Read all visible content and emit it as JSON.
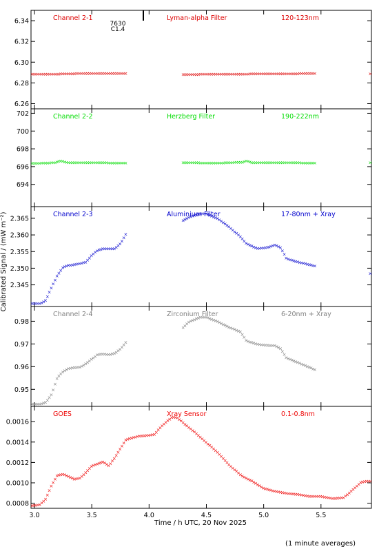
{
  "figure": {
    "xlabel": "Time / h UTC, 20 Nov 2025",
    "ylabel": "Calibrated Signal / (mW m⁻²)",
    "footer": "(1 minute averages)",
    "flare_number": "7630",
    "flare_class": "C1.4"
  },
  "chart_data": [
    {
      "type": "scatter",
      "channel_label": "Channel 2-1",
      "filter_label": "Lyman-alpha Filter",
      "band_label": "120-123nm",
      "color": "#dd0000",
      "xlim": [
        2.97,
        5.94
      ],
      "ylim": [
        6.255,
        6.35
      ],
      "y_ticks": [
        "6.26",
        "6.28",
        "6.30",
        "6.32",
        "6.34"
      ],
      "series": [
        {
          "points": [
            [
              2.98,
              6.289
            ],
            [
              3.2,
              6.289
            ],
            [
              3.4,
              6.2895
            ],
            [
              3.6,
              6.2895
            ],
            [
              3.8,
              6.2895
            ],
            [
              4.3,
              6.2885
            ],
            [
              4.5,
              6.2888
            ],
            [
              4.8,
              6.289
            ],
            [
              5.1,
              6.2892
            ],
            [
              5.45,
              6.2895
            ],
            [
              5.94,
              6.2893
            ]
          ],
          "gaps": [
            [
              3.8,
              4.3
            ],
            [
              5.45,
              5.93
            ]
          ]
        }
      ]
    },
    {
      "type": "scatter",
      "channel_label": "Channel 2-2",
      "filter_label": "Herzberg Filter",
      "band_label": "190-222nm",
      "color": "#00dd00",
      "xlim": [
        2.97,
        5.94
      ],
      "ylim": [
        691.5,
        702.5
      ],
      "y_ticks": [
        "694",
        "696",
        "698",
        "700",
        "702"
      ],
      "series": [
        {
          "points": [
            [
              2.98,
              696.4
            ],
            [
              3.18,
              696.5
            ],
            [
              3.22,
              696.7
            ],
            [
              3.3,
              696.5
            ],
            [
              3.5,
              696.5
            ],
            [
              3.8,
              696.45
            ],
            [
              4.3,
              696.5
            ],
            [
              4.6,
              696.45
            ],
            [
              4.82,
              696.55
            ],
            [
              4.85,
              696.7
            ],
            [
              4.9,
              696.5
            ],
            [
              5.2,
              696.5
            ],
            [
              5.45,
              696.45
            ],
            [
              5.94,
              696.5
            ]
          ],
          "gaps": [
            [
              3.8,
              4.3
            ],
            [
              5.45,
              5.93
            ]
          ]
        }
      ]
    },
    {
      "type": "scatter",
      "channel_label": "Channel 2-3",
      "filter_label": "Aluminium Filter",
      "band_label": "17-80nm + Xray",
      "color": "#0000cc",
      "xlim": [
        2.97,
        5.94
      ],
      "ylim": [
        2.3385,
        2.3685
      ],
      "y_ticks": [
        "2.345",
        "2.350",
        "2.355",
        "2.360",
        "2.365"
      ],
      "series": [
        {
          "points": [
            [
              2.98,
              2.3395
            ],
            [
              3.05,
              2.3395
            ],
            [
              3.1,
              2.3405
            ],
            [
              3.15,
              2.3445
            ],
            [
              3.2,
              2.348
            ],
            [
              3.25,
              2.3505
            ],
            [
              3.3,
              2.351
            ],
            [
              3.4,
              2.3515
            ],
            [
              3.45,
              2.352
            ],
            [
              3.5,
              2.354
            ],
            [
              3.55,
              2.3555
            ],
            [
              3.6,
              2.356
            ],
            [
              3.7,
              2.356
            ],
            [
              3.75,
              2.3575
            ],
            [
              3.8,
              2.3605
            ],
            [
              4.3,
              2.3645
            ],
            [
              4.35,
              2.3655
            ],
            [
              4.45,
              2.3665
            ],
            [
              4.5,
              2.3665
            ],
            [
              4.6,
              2.365
            ],
            [
              4.7,
              2.3625
            ],
            [
              4.8,
              2.3595
            ],
            [
              4.85,
              2.3575
            ],
            [
              4.95,
              2.356
            ],
            [
              5.05,
              2.3565
            ],
            [
              5.1,
              2.3572
            ],
            [
              5.15,
              2.3562
            ],
            [
              5.2,
              2.353
            ],
            [
              5.3,
              2.352
            ],
            [
              5.45,
              2.3508
            ],
            [
              5.94,
              2.3485
            ]
          ],
          "gaps": [
            [
              3.8,
              4.3
            ],
            [
              5.45,
              5.93
            ]
          ]
        }
      ]
    },
    {
      "type": "scatter",
      "channel_label": "Channel 2-4",
      "filter_label": "Zirconium Filter",
      "band_label": "6-20nm + Xray",
      "color": "#808080",
      "xlim": [
        2.97,
        5.94
      ],
      "ylim": [
        0.9425,
        0.9865
      ],
      "y_ticks": [
        "0.95",
        "0.96",
        "0.97",
        "0.98"
      ],
      "series": [
        {
          "points": [
            [
              2.98,
              0.9437
            ],
            [
              3.05,
              0.9437
            ],
            [
              3.1,
              0.9445
            ],
            [
              3.15,
              0.948
            ],
            [
              3.2,
              0.9555
            ],
            [
              3.25,
              0.958
            ],
            [
              3.3,
              0.9595
            ],
            [
              3.4,
              0.96
            ],
            [
              3.45,
              0.9615
            ],
            [
              3.5,
              0.9635
            ],
            [
              3.55,
              0.9655
            ],
            [
              3.6,
              0.9658
            ],
            [
              3.65,
              0.9655
            ],
            [
              3.7,
              0.966
            ],
            [
              3.75,
              0.968
            ],
            [
              3.8,
              0.971
            ],
            [
              4.3,
              0.9775
            ],
            [
              4.35,
              0.98
            ],
            [
              4.45,
              0.982
            ],
            [
              4.5,
              0.982
            ],
            [
              4.6,
              0.98
            ],
            [
              4.7,
              0.9775
            ],
            [
              4.8,
              0.9755
            ],
            [
              4.85,
              0.9715
            ],
            [
              4.95,
              0.97
            ],
            [
              5.05,
              0.9695
            ],
            [
              5.1,
              0.9695
            ],
            [
              5.15,
              0.968
            ],
            [
              5.2,
              0.964
            ],
            [
              5.3,
              0.962
            ],
            [
              5.45,
              0.9588
            ]
          ],
          "gaps": [
            [
              3.8,
              4.3
            ]
          ]
        }
      ]
    },
    {
      "type": "scatter",
      "channel_label": "GOES",
      "filter_label": "Xray Sensor",
      "band_label": "0.1-0.8nm",
      "color": "#ee0000",
      "xlim": [
        2.97,
        5.94
      ],
      "ylim": [
        0.00075,
        0.00175
      ],
      "y_ticks": [
        "0.0008",
        "0.0010",
        "0.0012",
        "0.0014",
        "0.0016"
      ],
      "series": [
        {
          "points": [
            [
              2.98,
              0.00078
            ],
            [
              3.05,
              0.00079
            ],
            [
              3.1,
              0.00085
            ],
            [
              3.15,
              0.00098
            ],
            [
              3.2,
              0.00108
            ],
            [
              3.25,
              0.00109
            ],
            [
              3.35,
              0.00104
            ],
            [
              3.4,
              0.00105
            ],
            [
              3.45,
              0.00111
            ],
            [
              3.5,
              0.00117
            ],
            [
              3.6,
              0.00121
            ],
            [
              3.65,
              0.00117
            ],
            [
              3.7,
              0.00125
            ],
            [
              3.8,
              0.00143
            ],
            [
              3.9,
              0.00146
            ],
            [
              4.0,
              0.00147
            ],
            [
              4.05,
              0.00148
            ],
            [
              4.1,
              0.00155
            ],
            [
              4.2,
              0.00165
            ],
            [
              4.25,
              0.00164
            ],
            [
              4.3,
              0.00159
            ],
            [
              4.4,
              0.0015
            ],
            [
              4.5,
              0.0014
            ],
            [
              4.6,
              0.0013
            ],
            [
              4.7,
              0.00118
            ],
            [
              4.8,
              0.00108
            ],
            [
              4.9,
              0.00102
            ],
            [
              5.0,
              0.00095
            ],
            [
              5.1,
              0.00092
            ],
            [
              5.2,
              0.0009
            ],
            [
              5.3,
              0.00089
            ],
            [
              5.4,
              0.00087
            ],
            [
              5.5,
              0.00087
            ],
            [
              5.6,
              0.00085
            ],
            [
              5.7,
              0.00086
            ],
            [
              5.8,
              0.00096
            ],
            [
              5.85,
              0.00101
            ],
            [
              5.9,
              0.00102
            ],
            [
              5.94,
              0.00102
            ]
          ],
          "gaps": []
        }
      ]
    }
  ],
  "x_ticks": [
    "3.0",
    "3.5",
    "4.0",
    "4.5",
    "5.0",
    "5.5"
  ]
}
